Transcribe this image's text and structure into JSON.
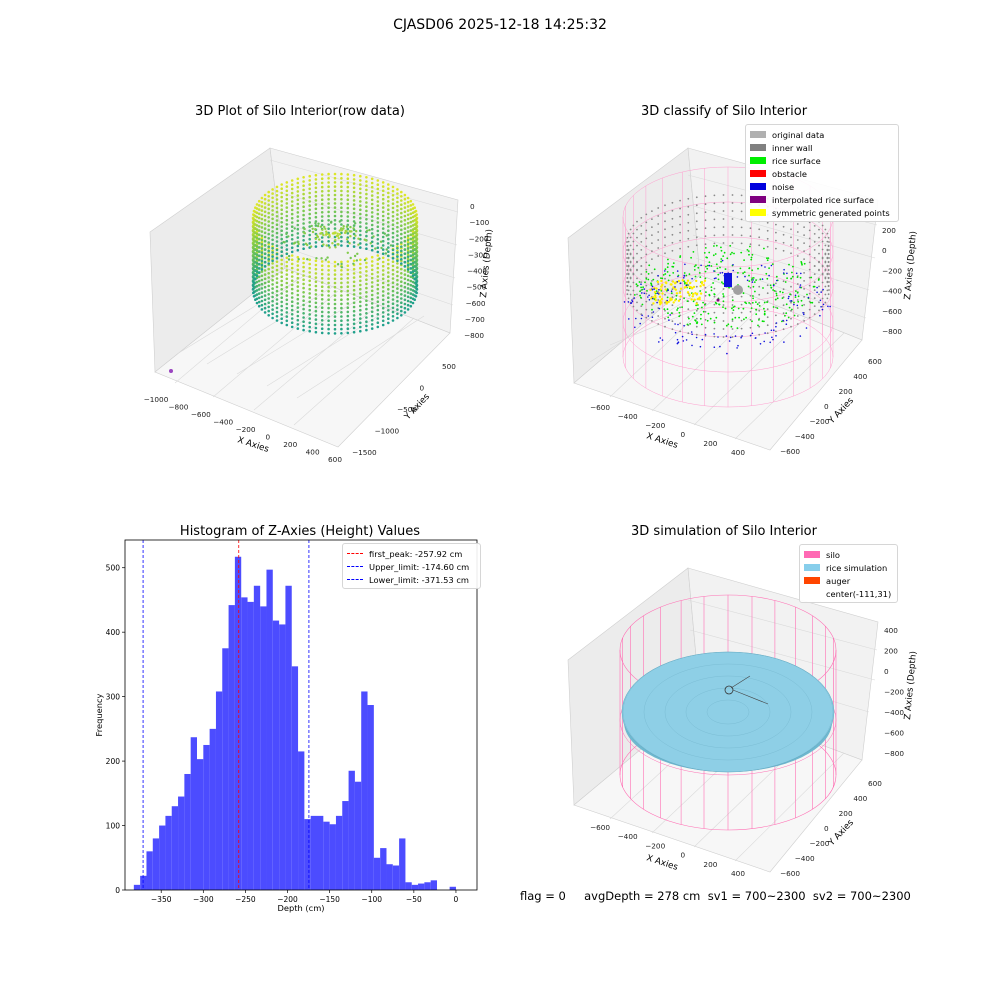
{
  "figure": {
    "suptitle": "CJASD06 2025-12-18 14:25:32"
  },
  "panels": {
    "raw": {
      "title": "3D Plot of Silo Interior(row data)",
      "xlabel": "X Axies",
      "ylabel": "Y Axies",
      "zlabel": "Z Axies (Depth)",
      "x_ticks": [
        "−1000",
        "−800",
        "−600",
        "−400",
        "−200",
        "0",
        "200",
        "400",
        "600"
      ],
      "y_ticks": [
        "−1500",
        "−1000",
        "−500",
        "0",
        "500"
      ],
      "z_ticks": [
        "0",
        "−100",
        "−200",
        "−300",
        "−400",
        "−500",
        "−600",
        "−700",
        "−800"
      ]
    },
    "classify": {
      "title": "3D classify of Silo Interior",
      "xlabel": "X Axies",
      "ylabel": "Y Axies",
      "zlabel": "Z Axies (Depth)",
      "x_ticks": [
        "−600",
        "−400",
        "−200",
        "0",
        "200",
        "400"
      ],
      "y_ticks": [
        "−600",
        "−400",
        "−200",
        "0",
        "200",
        "400",
        "600"
      ],
      "z_ticks": [
        "200",
        "0",
        "−200",
        "−400",
        "−600",
        "−800"
      ],
      "legend": [
        {
          "label": "original data",
          "color": "#b0b0b0"
        },
        {
          "label": "inner wall",
          "color": "#808080"
        },
        {
          "label": "rice surface",
          "color": "#00ee00"
        },
        {
          "label": "obstacle",
          "color": "#ff0000"
        },
        {
          "label": "noise",
          "color": "#0000dd"
        },
        {
          "label": "interpolated rice surface",
          "color": "#800080"
        },
        {
          "label": "symmetric generated points",
          "color": "#ffff00"
        }
      ]
    },
    "simulation": {
      "title": "3D simulation of Silo Interior",
      "xlabel": "X Axies",
      "ylabel": "Y Axies",
      "zlabel": "Z Axies (Depth)",
      "x_ticks": [
        "−600",
        "−400",
        "−200",
        "0",
        "200",
        "400"
      ],
      "y_ticks": [
        "−600",
        "−400",
        "−200",
        "0",
        "200",
        "400",
        "600"
      ],
      "z_ticks": [
        "400",
        "200",
        "0",
        "−200",
        "−400",
        "−600",
        "−800"
      ],
      "legend": [
        {
          "label": "silo",
          "color": "#ff69b4"
        },
        {
          "label": "rice simulation",
          "color": "#87ceeb"
        },
        {
          "label": "auger",
          "color": "#ff4500"
        },
        {
          "label": "center(-111,31)",
          "color": "none"
        }
      ]
    },
    "footer": {
      "text": "flag = 0     avgDepth = 278 cm  sv1 = 700~2300  sv2 = 700~2300"
    }
  },
  "chart_data": [
    {
      "type": "bar",
      "title": "Histogram of Z-Axies (Height) Values",
      "xlabel": "Depth (cm)",
      "ylabel": "Frequency",
      "xlim": [
        -393,
        25
      ],
      "ylim": [
        0,
        543
      ],
      "bin_width": 7.5,
      "x_ticks": [
        -350,
        -300,
        -250,
        -200,
        -150,
        -100,
        -50,
        0
      ],
      "y_ticks": [
        0,
        100,
        200,
        300,
        400,
        500
      ],
      "bins_start": [
        -382.5,
        -375,
        -367.5,
        -360,
        -352.5,
        -345,
        -337.5,
        -330,
        -322.5,
        -315,
        -307.5,
        -300,
        -292.5,
        -285,
        -277.5,
        -270,
        -262.5,
        -255,
        -247.5,
        -240,
        -232.5,
        -225,
        -217.5,
        -210,
        -202.5,
        -195,
        -187.5,
        -180,
        -172.5,
        -165,
        -157.5,
        -150,
        -142.5,
        -135,
        -127.5,
        -120,
        -112.5,
        -105,
        -97.5,
        -90,
        -82.5,
        -75,
        -67.5,
        -60,
        -52.5,
        -45,
        -37.5,
        -30,
        -22.5,
        -15,
        -7.5,
        0
      ],
      "values": [
        8,
        22,
        60,
        80,
        100,
        115,
        130,
        145,
        180,
        237,
        203,
        225,
        250,
        308,
        375,
        442,
        517,
        454,
        447,
        472,
        440,
        497,
        418,
        412,
        472,
        347,
        215,
        110,
        115,
        115,
        106,
        102,
        115,
        138,
        185,
        168,
        308,
        287,
        50,
        65,
        40,
        38,
        80,
        12,
        8,
        10,
        12,
        15,
        0,
        0,
        5,
        0
      ],
      "lines": [
        {
          "label": "first_peak: -257.92 cm",
          "x": -257.92,
          "color": "#ff0000"
        },
        {
          "label": "Upper_limit: -174.60 cm",
          "x": -174.6,
          "color": "#0000ff"
        },
        {
          "label": "Lower_limit: -371.53 cm",
          "x": -371.53,
          "color": "#0000ff"
        }
      ],
      "bar_color": "#4c4cff"
    }
  ]
}
